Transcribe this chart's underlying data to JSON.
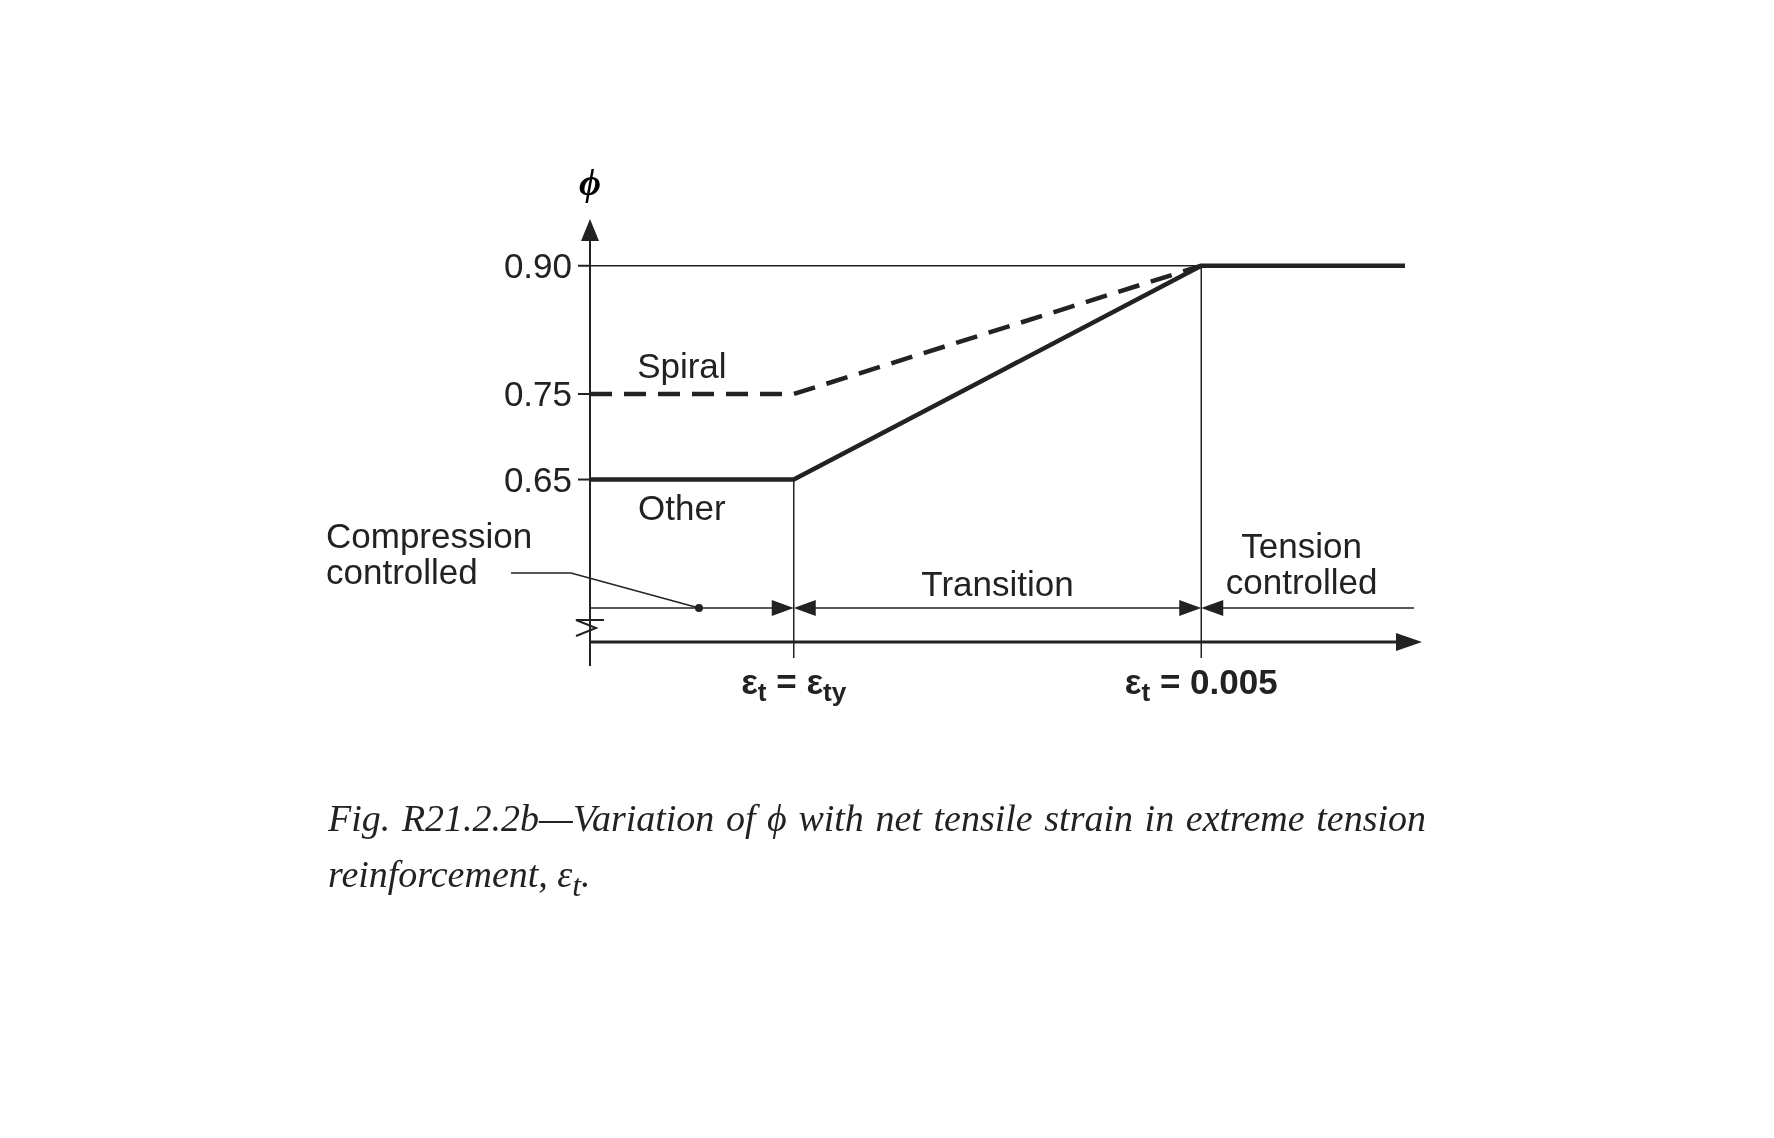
{
  "chart_data": {
    "type": "line",
    "title": "Fig. R21.2.2b—Variation of ϕ with net tensile strain in extreme tension reinforcement, ε$_{t}$.",
    "ylabel": "ϕ",
    "categories": [
      null,
      "ε$_{t}$ = ε$_{ty}$",
      null,
      "ε$_{t}$ = 0.005",
      null
    ],
    "series": [
      {
        "name": "Other",
        "color": "#222222",
        "line_style": "solid",
        "values": [
          0.65,
          0.65,
          0.775,
          0.9,
          0.9
        ]
      },
      {
        "name": "Spiral",
        "color": "#222222",
        "line_style": "dashed",
        "values": [
          0.75,
          0.75,
          0.825,
          0.9,
          null
        ]
      }
    ],
    "ylim": [
      0.46,
      0.95
    ],
    "yticks": [
      0.65,
      0.75,
      {
        "value": 0.9,
        "label": "0.90"
      }
    ],
    "ref_lines": [
      {
        "axis": "y",
        "value": 0.9
      },
      {
        "axis": "x",
        "value": "ε$_{t}$ = ε$_{ty}$"
      },
      {
        "axis": "x",
        "value": "ε$_{t}$ = 0.005"
      }
    ],
    "annotations": [
      "Compression\ncontrolled",
      "Transition",
      "Tension\ncontrolled"
    ],
    "marker": "none"
  }
}
